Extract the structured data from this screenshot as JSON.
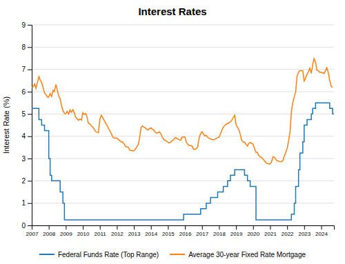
{
  "chart_data": {
    "type": "line",
    "title": "Interest Rates",
    "y_label": "Interest Rate (%)",
    "xlim": [
      2007,
      2024.75
    ],
    "xticks": [
      2007,
      2008,
      2009,
      2010,
      2011,
      2012,
      2013,
      2014,
      2015,
      2016,
      2017,
      2018,
      2019,
      2020,
      2021,
      2022,
      2023,
      2024
    ],
    "ylim": [
      0,
      9
    ],
    "yticks": [
      0,
      1,
      2,
      3,
      4,
      5,
      6,
      7,
      8,
      9
    ],
    "grid": "y",
    "legend": "bottom",
    "series": [
      {
        "name": "Federal Funds Rate (Top Range)",
        "x": [
          2007.0,
          2007.42,
          2007.42,
          2007.58,
          2007.58,
          2007.75,
          2007.75,
          2008.0,
          2008.0,
          2008.08,
          2008.08,
          2008.17,
          2008.17,
          2008.33,
          2008.33,
          2008.67,
          2008.67,
          2008.83,
          2008.83,
          2008.92,
          2008.92,
          2015.92,
          2015.92,
          2016.92,
          2016.92,
          2017.25,
          2017.25,
          2017.5,
          2017.5,
          2017.92,
          2017.92,
          2018.25,
          2018.25,
          2018.5,
          2018.5,
          2018.67,
          2018.67,
          2018.92,
          2018.92,
          2019.5,
          2019.5,
          2019.67,
          2019.67,
          2019.83,
          2019.83,
          2020.17,
          2020.17,
          2022.25,
          2022.25,
          2022.42,
          2022.42,
          2022.5,
          2022.5,
          2022.67,
          2022.67,
          2022.75,
          2022.75,
          2022.92,
          2022.92,
          2023.0,
          2023.0,
          2023.17,
          2023.17,
          2023.42,
          2023.42,
          2023.5,
          2023.5,
          2023.67,
          2023.67,
          2024.5,
          2024.5,
          2024.67,
          2024.67,
          2024.75
        ],
        "values": [
          5.25,
          5.25,
          4.75,
          4.75,
          4.5,
          4.5,
          4.25,
          4.25,
          3.0,
          3.0,
          2.25,
          2.25,
          2.0,
          2.0,
          2.0,
          2.0,
          1.5,
          1.5,
          1.0,
          1.0,
          0.25,
          0.25,
          0.5,
          0.5,
          0.75,
          0.75,
          1.0,
          1.0,
          1.25,
          1.25,
          1.5,
          1.5,
          1.75,
          1.75,
          2.0,
          2.0,
          2.25,
          2.25,
          2.5,
          2.5,
          2.25,
          2.25,
          2.0,
          2.0,
          1.75,
          1.75,
          0.25,
          0.25,
          0.5,
          0.5,
          1.0,
          1.0,
          1.75,
          1.75,
          2.5,
          2.5,
          3.25,
          3.25,
          3.75,
          3.75,
          4.5,
          4.5,
          4.75,
          4.75,
          5.0,
          5.0,
          5.25,
          5.25,
          5.5,
          5.5,
          5.25,
          5.25,
          5.0,
          5.0
        ]
      },
      {
        "name": "Average 30-year Fixed Rate Mortgage",
        "x": [
          2007.0,
          2007.08,
          2007.17,
          2007.25,
          2007.33,
          2007.42,
          2007.5,
          2007.58,
          2007.67,
          2007.75,
          2007.83,
          2007.92,
          2008.0,
          2008.08,
          2008.17,
          2008.25,
          2008.33,
          2008.42,
          2008.5,
          2008.58,
          2008.67,
          2008.75,
          2008.83,
          2008.92,
          2009.0,
          2009.08,
          2009.17,
          2009.25,
          2009.33,
          2009.42,
          2009.5,
          2009.58,
          2009.67,
          2009.75,
          2009.83,
          2009.92,
          2010.0,
          2010.08,
          2010.17,
          2010.25,
          2010.33,
          2010.42,
          2010.5,
          2010.58,
          2010.67,
          2010.75,
          2010.83,
          2010.92,
          2011.0,
          2011.08,
          2011.17,
          2011.25,
          2011.33,
          2011.42,
          2011.5,
          2011.58,
          2011.67,
          2011.75,
          2011.83,
          2011.92,
          2012.0,
          2012.08,
          2012.17,
          2012.25,
          2012.33,
          2012.42,
          2012.5,
          2012.58,
          2012.67,
          2012.75,
          2012.83,
          2012.92,
          2013.0,
          2013.08,
          2013.17,
          2013.25,
          2013.33,
          2013.42,
          2013.5,
          2013.58,
          2013.67,
          2013.75,
          2013.83,
          2013.92,
          2014.0,
          2014.08,
          2014.17,
          2014.25,
          2014.33,
          2014.42,
          2014.5,
          2014.58,
          2014.67,
          2014.75,
          2014.83,
          2014.92,
          2015.0,
          2015.08,
          2015.17,
          2015.25,
          2015.33,
          2015.42,
          2015.5,
          2015.58,
          2015.67,
          2015.75,
          2015.83,
          2015.92,
          2016.0,
          2016.08,
          2016.17,
          2016.25,
          2016.33,
          2016.42,
          2016.5,
          2016.58,
          2016.67,
          2016.75,
          2016.83,
          2016.92,
          2017.0,
          2017.08,
          2017.17,
          2017.25,
          2017.33,
          2017.42,
          2017.5,
          2017.58,
          2017.67,
          2017.75,
          2017.83,
          2017.92,
          2018.0,
          2018.08,
          2018.17,
          2018.25,
          2018.33,
          2018.42,
          2018.5,
          2018.58,
          2018.67,
          2018.75,
          2018.83,
          2018.92,
          2019.0,
          2019.08,
          2019.17,
          2019.25,
          2019.33,
          2019.42,
          2019.5,
          2019.58,
          2019.67,
          2019.75,
          2019.83,
          2019.92,
          2020.0,
          2020.08,
          2020.17,
          2020.25,
          2020.33,
          2020.42,
          2020.5,
          2020.58,
          2020.67,
          2020.75,
          2020.83,
          2020.92,
          2021.0,
          2021.08,
          2021.17,
          2021.25,
          2021.33,
          2021.42,
          2021.5,
          2021.58,
          2021.67,
          2021.75,
          2021.83,
          2021.92,
          2022.0,
          2022.08,
          2022.17,
          2022.25,
          2022.33,
          2022.42,
          2022.5,
          2022.58,
          2022.67,
          2022.75,
          2022.83,
          2022.92,
          2023.0,
          2023.08,
          2023.17,
          2023.25,
          2023.33,
          2023.42,
          2023.5,
          2023.58,
          2023.67,
          2023.75,
          2023.83,
          2023.92,
          2024.0,
          2024.08,
          2024.17,
          2024.25,
          2024.33,
          2024.42,
          2024.5,
          2024.6,
          2024.67
        ],
        "values": [
          6.18,
          6.22,
          6.35,
          6.15,
          6.4,
          6.68,
          6.52,
          6.42,
          6.18,
          5.94,
          5.88,
          5.76,
          5.76,
          5.92,
          5.78,
          6.06,
          6.0,
          6.32,
          6.08,
          5.82,
          5.68,
          5.38,
          5.16,
          5.02,
          5.01,
          5.12,
          5.0,
          5.18,
          5.08,
          5.19,
          5.05,
          4.86,
          4.78,
          4.71,
          4.78,
          4.72,
          5.06,
          4.97,
          5.02,
          4.86,
          4.58,
          4.55,
          4.46,
          4.42,
          4.32,
          4.22,
          4.18,
          4.16,
          4.76,
          4.94,
          4.84,
          4.72,
          4.6,
          4.5,
          4.36,
          4.26,
          4.12,
          3.98,
          3.92,
          3.92,
          3.92,
          3.87,
          3.8,
          3.75,
          3.75,
          3.66,
          3.55,
          3.52,
          3.52,
          3.38,
          3.36,
          3.35,
          3.35,
          3.42,
          3.52,
          3.62,
          3.9,
          4.38,
          4.46,
          4.42,
          4.37,
          4.32,
          4.28,
          4.35,
          4.38,
          4.32,
          4.28,
          4.18,
          4.14,
          4.16,
          4.2,
          4.12,
          3.96,
          3.86,
          3.82,
          3.78,
          3.73,
          3.7,
          3.74,
          3.8,
          3.84,
          3.94,
          3.92,
          3.88,
          3.84,
          3.82,
          3.96,
          3.97,
          3.97,
          3.72,
          3.64,
          3.58,
          3.58,
          3.56,
          3.42,
          3.42,
          3.44,
          3.52,
          3.92,
          4.12,
          4.2,
          4.1,
          4.02,
          4.04,
          3.96,
          3.9,
          3.88,
          3.86,
          3.84,
          3.86,
          3.9,
          3.94,
          3.96,
          4.1,
          4.28,
          4.4,
          4.48,
          4.54,
          4.57,
          4.6,
          4.65,
          4.72,
          4.83,
          4.94,
          4.52,
          4.41,
          4.28,
          4.08,
          3.82,
          3.74,
          3.74,
          3.64,
          3.56,
          3.68,
          3.72,
          3.68,
          3.64,
          3.46,
          3.28,
          3.28,
          3.14,
          3.08,
          3.04,
          2.98,
          2.9,
          2.82,
          2.78,
          2.76,
          2.76,
          2.84,
          3.08,
          3.06,
          2.96,
          2.9,
          2.88,
          2.86,
          2.86,
          2.9,
          3.1,
          3.28,
          3.45,
          3.76,
          4.2,
          5.1,
          5.5,
          5.78,
          5.98,
          6.68,
          6.88,
          6.94,
          6.94,
          6.94,
          6.48,
          6.6,
          6.79,
          6.88,
          7.06,
          6.82,
          7.22,
          7.48,
          7.32,
          6.97,
          6.94,
          6.87,
          6.88,
          6.84,
          6.82,
          6.94,
          7.08,
          6.86,
          6.5,
          6.22,
          6.2
        ]
      }
    ]
  }
}
